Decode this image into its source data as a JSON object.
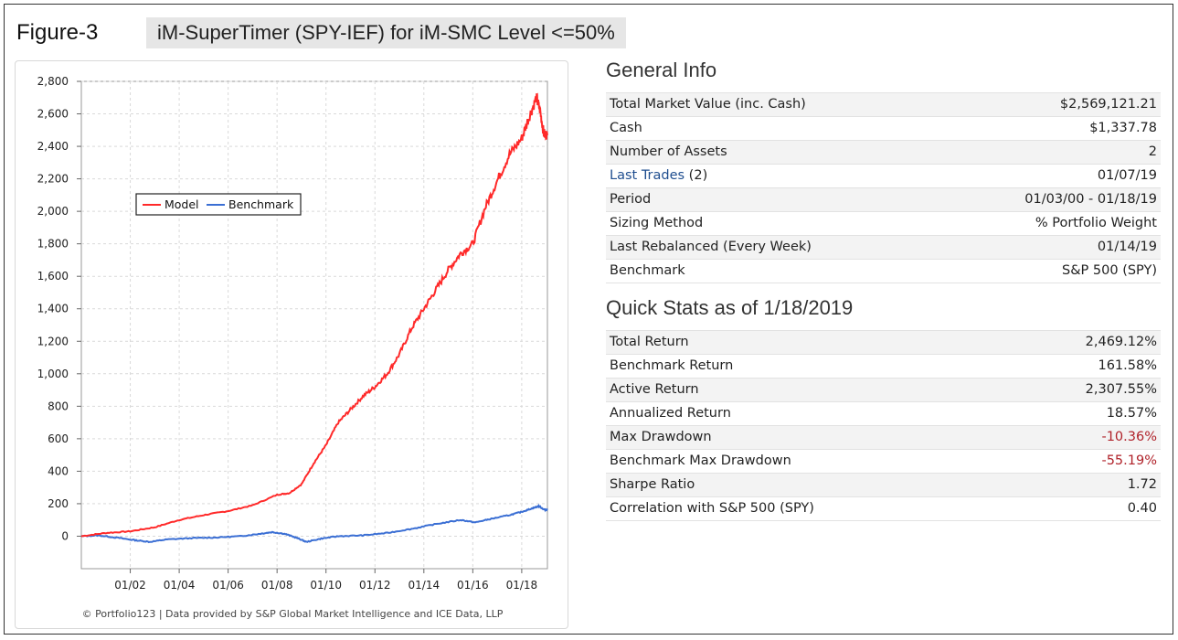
{
  "figure_label": "Figure-3",
  "figure_title": "iM-SuperTimer (SPY-IEF) for iM-SMC Level <=50%",
  "credit": "© Portfolio123 | Data provided by S&P Global Market Intelligence and ICE Data, LLP",
  "colors": {
    "model": "#ff2a2a",
    "benchmark": "#3b6fd4",
    "negative": "#b0222a",
    "link": "#1f4e8f"
  },
  "general_info": {
    "title": "General Info",
    "rows": [
      {
        "label": "Total Market Value (inc. Cash)",
        "value": "$2,569,121.21"
      },
      {
        "label": "Cash",
        "value": "$1,337.78"
      },
      {
        "label": "Number of Assets",
        "value": "2"
      },
      {
        "label": "Last Trades",
        "link_label": "Last Trades",
        "suffix": " (2)",
        "value": "01/07/19"
      },
      {
        "label": "Period",
        "value": "01/03/00 - 01/18/19"
      },
      {
        "label": "Sizing Method",
        "value": "% Portfolio Weight"
      },
      {
        "label": "Last Rebalanced (Every Week)",
        "value": "01/14/19"
      },
      {
        "label": "Benchmark",
        "value": "S&P 500 (SPY)"
      }
    ]
  },
  "quick_stats": {
    "title": "Quick Stats as of 1/18/2019",
    "rows": [
      {
        "label": "Total Return",
        "value": "2,469.12%"
      },
      {
        "label": "Benchmark Return",
        "value": "161.58%"
      },
      {
        "label": "Active Return",
        "value": "2,307.55%"
      },
      {
        "label": "Annualized Return",
        "value": "18.57%"
      },
      {
        "label": "Max Drawdown",
        "value": "-10.36%",
        "negative": true
      },
      {
        "label": "Benchmark Max Drawdown",
        "value": "-55.19%",
        "negative": true
      },
      {
        "label": "Sharpe Ratio",
        "value": "1.72"
      },
      {
        "label": "Correlation with S&P 500 (SPY)",
        "value": "0.40"
      }
    ]
  },
  "chart_data": {
    "type": "line",
    "title": "",
    "xlabel": "",
    "ylabel": "",
    "xlim": [
      2000.0,
      2019.05
    ],
    "ylim": [
      -200,
      2800
    ],
    "y_ticks": [
      0,
      200,
      400,
      600,
      800,
      1000,
      1200,
      1400,
      1600,
      1800,
      2000,
      2200,
      2400,
      2600,
      2800
    ],
    "y_tick_labels": [
      "0",
      "200",
      "400",
      "600",
      "800",
      "1,000",
      "1,200",
      "1,400",
      "1,600",
      "1,800",
      "2,000",
      "2,200",
      "2,400",
      "2,600",
      "2,800"
    ],
    "x_ticks": [
      2002,
      2004,
      2006,
      2008,
      2010,
      2012,
      2014,
      2016,
      2018
    ],
    "x_tick_labels": [
      "01/02",
      "01/04",
      "01/06",
      "01/08",
      "01/10",
      "01/12",
      "01/14",
      "01/16",
      "01/18"
    ],
    "grid": true,
    "legend_position": "upper-left",
    "series": [
      {
        "name": "Model",
        "x": [
          2000.0,
          2001.0,
          2002.0,
          2003.0,
          2004.0,
          2005.0,
          2006.0,
          2007.0,
          2008.0,
          2008.5,
          2009.0,
          2009.5,
          2010.0,
          2010.5,
          2011.0,
          2011.5,
          2012.0,
          2012.5,
          2013.0,
          2013.5,
          2014.0,
          2014.5,
          2015.0,
          2015.5,
          2016.0,
          2016.5,
          2017.0,
          2017.5,
          2018.0,
          2018.3,
          2018.6,
          2018.75,
          2018.9,
          2019.05
        ],
        "values": [
          0,
          20,
          30,
          55,
          100,
          130,
          155,
          190,
          255,
          265,
          320,
          450,
          560,
          700,
          780,
          860,
          920,
          1000,
          1120,
          1280,
          1400,
          1520,
          1640,
          1740,
          1800,
          2020,
          2190,
          2350,
          2450,
          2580,
          2700,
          2620,
          2480,
          2469
        ]
      },
      {
        "name": "Benchmark",
        "x": [
          2000.0,
          2000.7,
          2001.5,
          2002.2,
          2002.8,
          2003.5,
          2004.5,
          2005.5,
          2006.5,
          2007.3,
          2007.8,
          2008.3,
          2008.8,
          2009.2,
          2009.8,
          2010.5,
          2011.5,
          2012.5,
          2013.5,
          2014.5,
          2015.5,
          2016.1,
          2016.7,
          2017.5,
          2018.0,
          2018.4,
          2018.7,
          2018.9,
          2019.05
        ],
        "values": [
          0,
          5,
          -10,
          -25,
          -35,
          -20,
          -12,
          -8,
          0,
          15,
          25,
          15,
          -10,
          -35,
          -15,
          0,
          5,
          20,
          45,
          75,
          100,
          85,
          105,
          130,
          150,
          170,
          185,
          165,
          162
        ]
      }
    ]
  }
}
